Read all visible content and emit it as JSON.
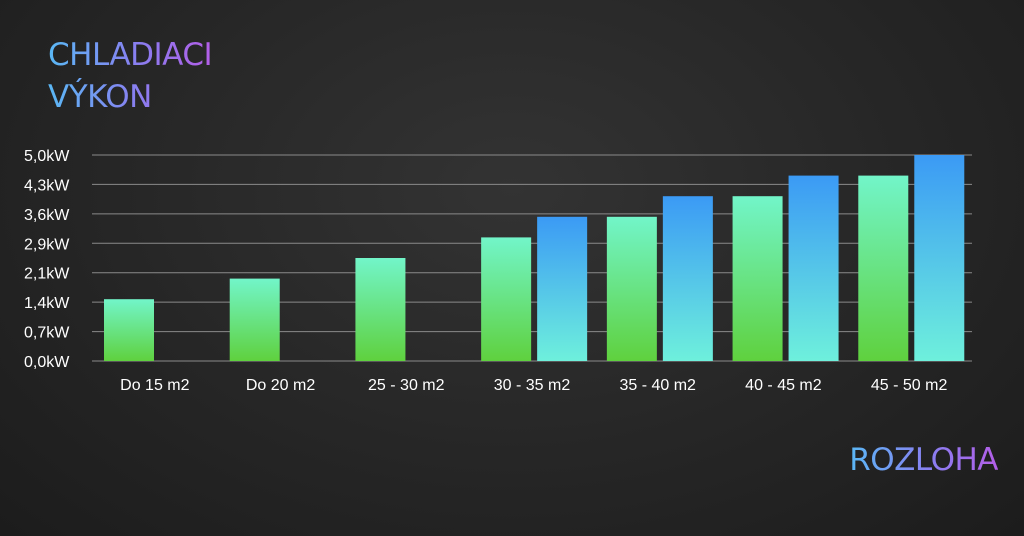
{
  "title_lines": [
    "CHLADIACI",
    "VÝKON"
  ],
  "x_axis_title": "ROZLOHA",
  "colors": {
    "series1_top": "#72f5c9",
    "series1_bottom": "#5fd13e",
    "series2_top": "#3b9af5",
    "series2_bottom": "#6ef0dc",
    "grid": "#8a8a8a",
    "text": "#ffffff"
  },
  "chart_data": {
    "type": "bar",
    "categories": [
      "Do 15 m2",
      "Do 20 m2",
      "25 - 30 m2",
      "30 - 35 m2",
      "35 - 40 m2",
      "40 - 45 m2",
      "45 - 50 m2"
    ],
    "series": [
      {
        "values": [
          1.5,
          2.0,
          2.5,
          3.0,
          3.5,
          4.0,
          4.5
        ]
      },
      {
        "values": [
          null,
          null,
          null,
          3.5,
          4.0,
          4.5,
          5.0
        ]
      }
    ],
    "ylim": [
      0,
      5.0
    ],
    "yticks": [
      0,
      0.7,
      1.4,
      2.1,
      2.9,
      3.6,
      4.3,
      5.0
    ],
    "ytick_labels": [
      "0,0kW",
      "0,7kW",
      "1,4kW",
      "2,1kW",
      "2,9kW",
      "3,6kW",
      "4,3kW",
      "5,0kW"
    ],
    "grid": true,
    "legend": "none"
  }
}
